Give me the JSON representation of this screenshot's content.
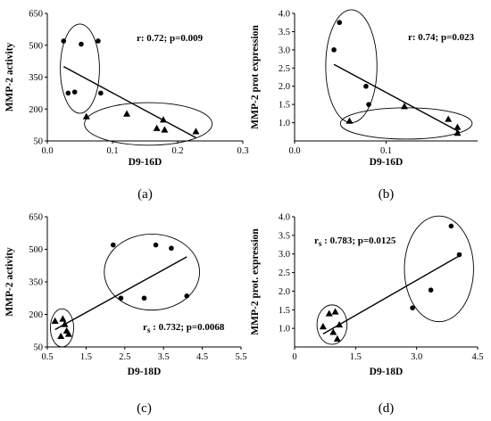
{
  "chart_data": [
    {
      "type": "scatter",
      "panel_label": "(a)",
      "xlabel": "D9-16D",
      "ylabel": "MMP-2 activity",
      "xlim": [
        0.0,
        0.3
      ],
      "ylim": [
        50,
        650
      ],
      "x_ticks": [
        "0.0",
        "0.1",
        "0.2",
        "0.3"
      ],
      "y_ticks": [
        "50",
        "200",
        "350",
        "500",
        "650"
      ],
      "y_tick_values": [
        50,
        200,
        350,
        500,
        650
      ],
      "x_tick_values": [
        0.0,
        0.1,
        0.2,
        0.3
      ],
      "annotation": "r: 0.72; p=0.009",
      "grid": false,
      "series": [
        {
          "marker": "circle",
          "x": [
            0.025,
            0.032,
            0.042,
            0.052,
            0.078,
            0.082
          ],
          "y": [
            520,
            275,
            280,
            505,
            520,
            275
          ]
        },
        {
          "marker": "triangle",
          "x": [
            0.06,
            0.122,
            0.168,
            0.178,
            0.18,
            0.228
          ],
          "y": [
            165,
            178,
            110,
            150,
            103,
            95
          ]
        }
      ],
      "fit_line": {
        "x": [
          0.025,
          0.228
        ],
        "y": [
          400,
          65
        ]
      },
      "ellipses": [
        {
          "cx": 0.05,
          "cy": 390,
          "rx": 0.03,
          "ry": 210
        },
        {
          "cx": 0.155,
          "cy": 130,
          "rx": 0.098,
          "ry": 100
        }
      ]
    },
    {
      "type": "scatter",
      "panel_label": "(b)",
      "xlabel": "D9-16D",
      "ylabel": "MMP-2 prot expression",
      "xlim": [
        0.0,
        0.2
      ],
      "ylim": [
        0.5,
        4.0
      ],
      "x_ticks": [
        "0.0",
        "0.1"
      ],
      "x_tick_values": [
        0.0,
        0.1
      ],
      "y_ticks": [
        "1.0",
        "1.5",
        "2.0",
        "2.5",
        "3.0",
        "3.5",
        "4.0"
      ],
      "y_tick_values": [
        1.0,
        1.5,
        2.0,
        2.5,
        3.0,
        3.5,
        4.0
      ],
      "annotation": "r: 0.74; p=0.023",
      "grid": false,
      "series": [
        {
          "marker": "circle",
          "x": [
            0.043,
            0.049,
            0.078,
            0.081
          ],
          "y": [
            3.0,
            3.75,
            2.0,
            1.5
          ]
        },
        {
          "marker": "triangle",
          "x": [
            0.06,
            0.12,
            0.168,
            0.178,
            0.178
          ],
          "y": [
            1.05,
            1.45,
            1.1,
            0.88,
            0.72
          ]
        }
      ],
      "fit_line": {
        "x": [
          0.043,
          0.18
        ],
        "y": [
          2.6,
          0.75
        ]
      },
      "ellipses": [
        {
          "cx": 0.062,
          "cy": 2.55,
          "rx": 0.028,
          "ry": 1.55
        },
        {
          "cx": 0.122,
          "cy": 0.98,
          "rx": 0.072,
          "ry": 0.43
        }
      ]
    },
    {
      "type": "scatter",
      "panel_label": "(c)",
      "xlabel": "D9-18D",
      "ylabel": "MMP-2 activity",
      "xlim": [
        0.5,
        5.5
      ],
      "ylim": [
        50,
        650
      ],
      "x_ticks": [
        "0.5",
        "1.5",
        "2.5",
        "3.5",
        "4.5",
        "5.5"
      ],
      "x_tick_values": [
        0.5,
        1.5,
        2.5,
        3.5,
        4.5,
        5.5
      ],
      "y_ticks": [
        "50",
        "200",
        "350",
        "500",
        "650"
      ],
      "y_tick_values": [
        50,
        200,
        350,
        500,
        650
      ],
      "annotation": "r s : 0.732; p=0.0068",
      "grid": false,
      "series": [
        {
          "marker": "circle",
          "x": [
            2.2,
            2.4,
            3.0,
            3.3,
            3.7,
            4.1
          ],
          "y": [
            520,
            275,
            275,
            520,
            505,
            285
          ]
        },
        {
          "marker": "triangle",
          "x": [
            0.7,
            0.85,
            0.9,
            0.95,
            1.0,
            1.05
          ],
          "y": [
            170,
            100,
            180,
            155,
            125,
            110
          ]
        }
      ],
      "fit_line": {
        "x": [
          0.7,
          4.1
        ],
        "y": [
          130,
          465
        ]
      },
      "ellipses": [
        {
          "cx": 3.2,
          "cy": 395,
          "rx": 1.23,
          "ry": 175
        },
        {
          "cx": 0.88,
          "cy": 138,
          "rx": 0.3,
          "ry": 88
        }
      ]
    },
    {
      "type": "scatter",
      "panel_label": "(d)",
      "xlabel": "D9-18D",
      "ylabel": "MMP-2 prot. expression",
      "xlim": [
        0.0,
        4.5
      ],
      "ylim": [
        0.5,
        4.0
      ],
      "x_ticks": [
        "0",
        "1.5",
        "3.0",
        "4.5"
      ],
      "x_tick_values": [
        0.0,
        1.5,
        3.0,
        4.5
      ],
      "y_ticks": [
        "1.0",
        "1.5",
        "2.0",
        "2.5",
        "3.0",
        "3.5",
        "4.0"
      ],
      "y_tick_values": [
        1.0,
        1.5,
        2.0,
        2.5,
        3.0,
        3.5,
        4.0
      ],
      "annotation": "r s : 0.783; p=0.0125",
      "grid": false,
      "series": [
        {
          "marker": "circle",
          "x": [
            2.9,
            3.35,
            3.85,
            4.05
          ],
          "y": [
            1.55,
            2.03,
            3.75,
            2.98
          ]
        },
        {
          "marker": "triangle",
          "x": [
            0.7,
            0.85,
            0.95,
            1.0,
            1.05,
            1.1
          ],
          "y": [
            1.05,
            1.4,
            0.9,
            1.45,
            0.72,
            1.1
          ]
        }
      ],
      "fit_line": {
        "x": [
          0.7,
          4.05
        ],
        "y": [
          0.85,
          2.95
        ]
      },
      "ellipses": [
        {
          "cx": 3.55,
          "cy": 2.6,
          "rx": 0.85,
          "ry": 1.42
        },
        {
          "cx": 0.92,
          "cy": 1.1,
          "rx": 0.37,
          "ry": 0.53
        }
      ]
    }
  ]
}
